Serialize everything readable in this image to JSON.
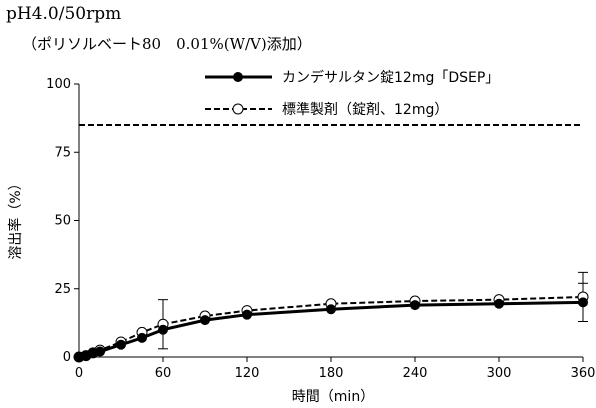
{
  "header": {
    "title": "pH4.0/50rpm",
    "subtitle": "（ポリソルベート80　0.01%(W/V)添加）"
  },
  "chart_data": {
    "type": "line",
    "xlabel": "時間（min）",
    "ylabel": "溶出率（%）",
    "xlim": [
      0,
      360
    ],
    "ylim": [
      0,
      100
    ],
    "xticks": [
      0,
      60,
      120,
      180,
      240,
      300,
      360
    ],
    "yticks": [
      0,
      25,
      50,
      75,
      100
    ],
    "reference_line": 85,
    "legend_position": "top-right",
    "series": [
      {
        "name": "カンデサルタン錠12mg「DSEP」",
        "style": "solid",
        "marker": "filled-circle",
        "color": "#000000",
        "x": [
          0,
          5,
          10,
          15,
          30,
          45,
          60,
          90,
          120,
          180,
          240,
          300,
          360
        ],
        "y": [
          0,
          0.5,
          1.5,
          2,
          4.5,
          7,
          10,
          13.5,
          15.5,
          17.5,
          19,
          19.5,
          20
        ],
        "error": [
          0,
          0,
          0,
          0,
          0,
          0,
          0,
          0,
          0,
          0,
          0,
          0,
          7
        ]
      },
      {
        "name": "標準製剤（錠剤、12mg）",
        "style": "dashed",
        "marker": "open-circle",
        "color": "#000000",
        "x": [
          0,
          5,
          10,
          15,
          30,
          45,
          60,
          90,
          120,
          180,
          240,
          300,
          360
        ],
        "y": [
          0,
          0.5,
          1.5,
          2.5,
          5.5,
          9,
          12,
          15,
          17,
          19.5,
          20.5,
          21,
          22
        ],
        "error": [
          0,
          0,
          0,
          0,
          0,
          0,
          9,
          0,
          0,
          0,
          0,
          0,
          9
        ]
      }
    ]
  }
}
